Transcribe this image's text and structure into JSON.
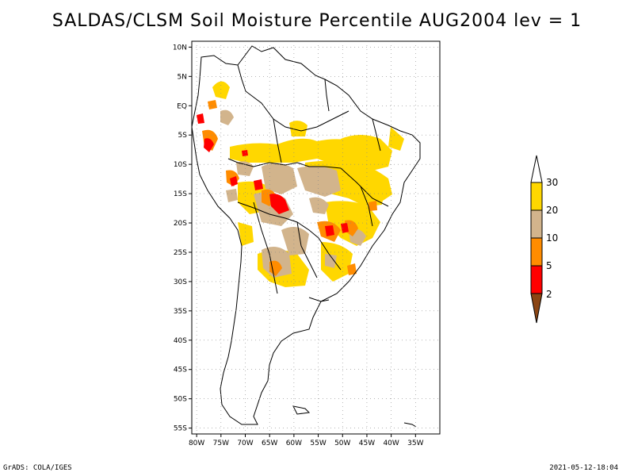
{
  "title": "SALDAS/CLSM Soil Moisture Percentile AUG2004 lev = 1",
  "footer": {
    "left": "GrADS: COLA/IGES",
    "right": "2021-05-12-18:04"
  },
  "map": {
    "lon_range": [
      -81,
      -30
    ],
    "lat_range": [
      -56,
      11
    ],
    "lat_ticks": [
      {
        "value": 10,
        "label": "10N"
      },
      {
        "value": 5,
        "label": "5N"
      },
      {
        "value": 0,
        "label": "EQ"
      },
      {
        "value": -5,
        "label": "5S"
      },
      {
        "value": -10,
        "label": "10S"
      },
      {
        "value": -15,
        "label": "15S"
      },
      {
        "value": -20,
        "label": "20S"
      },
      {
        "value": -25,
        "label": "25S"
      },
      {
        "value": -30,
        "label": "30S"
      },
      {
        "value": -35,
        "label": "35S"
      },
      {
        "value": -40,
        "label": "40S"
      },
      {
        "value": -45,
        "label": "45S"
      },
      {
        "value": -50,
        "label": "50S"
      },
      {
        "value": -55,
        "label": "55S"
      }
    ],
    "lon_ticks": [
      {
        "value": -80,
        "label": "80W"
      },
      {
        "value": -75,
        "label": "75W"
      },
      {
        "value": -70,
        "label": "70W"
      },
      {
        "value": -65,
        "label": "65W"
      },
      {
        "value": -60,
        "label": "60W"
      },
      {
        "value": -55,
        "label": "55W"
      },
      {
        "value": -50,
        "label": "50W"
      },
      {
        "value": -45,
        "label": "45W"
      },
      {
        "value": -40,
        "label": "40W"
      },
      {
        "value": -35,
        "label": "35W"
      }
    ],
    "grid": "dotted"
  },
  "colorbar": {
    "labels": [
      "30",
      "20",
      "10",
      "5",
      "2"
    ],
    "colors": {
      "above_30": "#ffffff",
      "20_30": "#ffd700",
      "10_20": "#d2b48c",
      "5_10": "#ff8c00",
      "2_5": "#ff0000",
      "below_2": "#8b4513"
    }
  },
  "chart_data": {
    "type": "heatmap",
    "title": "SALDAS/CLSM Soil Moisture Percentile AUG2004 lev = 1",
    "bins": [
      {
        "range": "<2",
        "color": "#8b4513"
      },
      {
        "range": "2-5",
        "color": "#ff0000"
      },
      {
        "range": "5-10",
        "color": "#ff8c00"
      },
      {
        "range": "10-20",
        "color": "#d2b48c"
      },
      {
        "range": "20-30",
        "color": "#ffd700"
      },
      {
        "range": ">30",
        "color": "#ffffff"
      }
    ],
    "x_range": [
      -81,
      -30
    ],
    "y_range": [
      -56,
      11
    ]
  }
}
